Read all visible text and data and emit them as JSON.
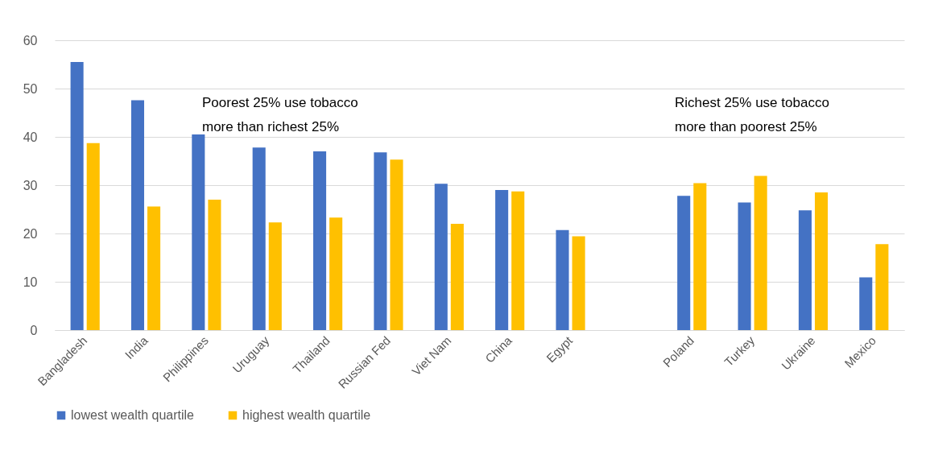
{
  "chart_data": {
    "type": "bar",
    "categories": [
      "Bangladesh",
      "India",
      "Philippines",
      "Uruguay",
      "Thailand",
      "Russian Fed",
      "Viet Nam",
      "China",
      "Egypt",
      null,
      "Poland",
      "Turkey",
      "Ukraine",
      "Mexico"
    ],
    "series": [
      {
        "name": "lowest wealth quartile",
        "color": "#4472c4",
        "values": [
          55.5,
          47.6,
          40.5,
          37.8,
          37.0,
          36.8,
          30.3,
          29.0,
          20.7,
          null,
          27.8,
          26.4,
          24.8,
          10.9
        ]
      },
      {
        "name": "highest wealth quartile",
        "color": "#ffc000",
        "values": [
          38.7,
          25.6,
          27.0,
          22.3,
          23.3,
          35.3,
          22.0,
          28.7,
          19.4,
          null,
          30.4,
          31.9,
          28.5,
          17.8
        ]
      }
    ],
    "ylim": [
      0,
      60
    ],
    "yticks": [
      0,
      10,
      20,
      30,
      40,
      50,
      60
    ],
    "grid": "y",
    "legend": "bottom",
    "annotations": [
      "Poorest 25% use tobacco\nmore than richest 25%",
      "Richest 25% use tobacco\nmore than poorest 25%"
    ]
  }
}
